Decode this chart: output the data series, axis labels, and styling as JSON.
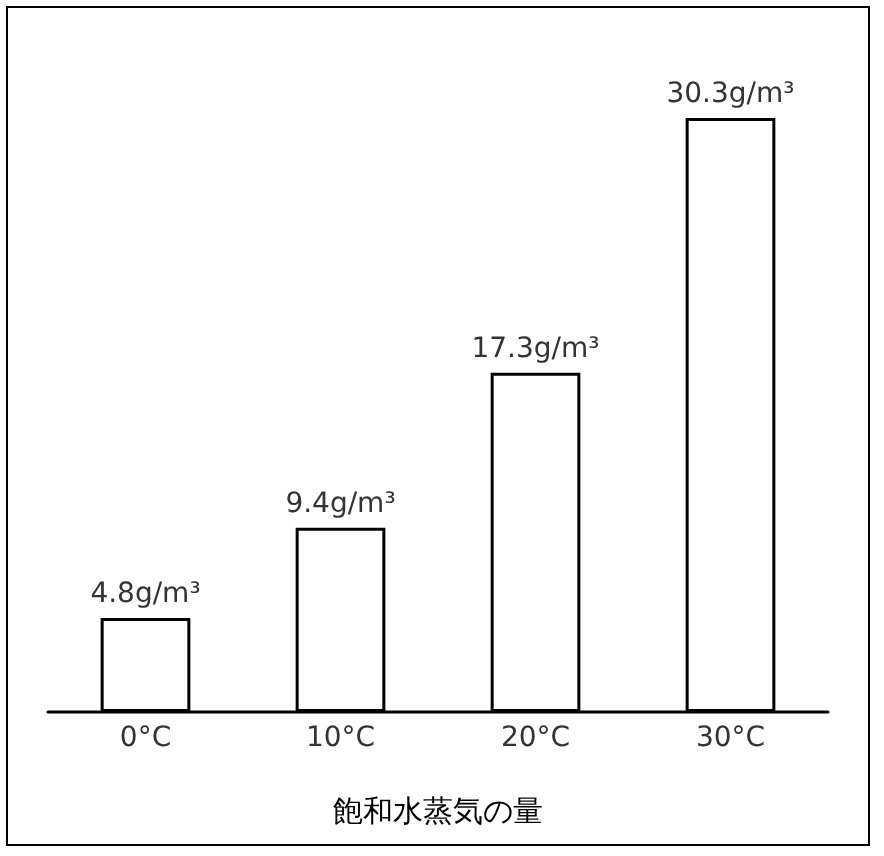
{
  "chart_data": {
    "type": "bar",
    "xlabel": "飽和水蒸気の量",
    "categories": [
      "0°C",
      "10°C",
      "20°C",
      "30°C"
    ],
    "values": [
      4.8,
      9.4,
      17.3,
      30.3
    ],
    "value_labels": [
      "4.8g/m³",
      "9.4g/m³",
      "17.3g/m³",
      "30.3g/m³"
    ],
    "color": "#ffffff",
    "grid": false
  }
}
